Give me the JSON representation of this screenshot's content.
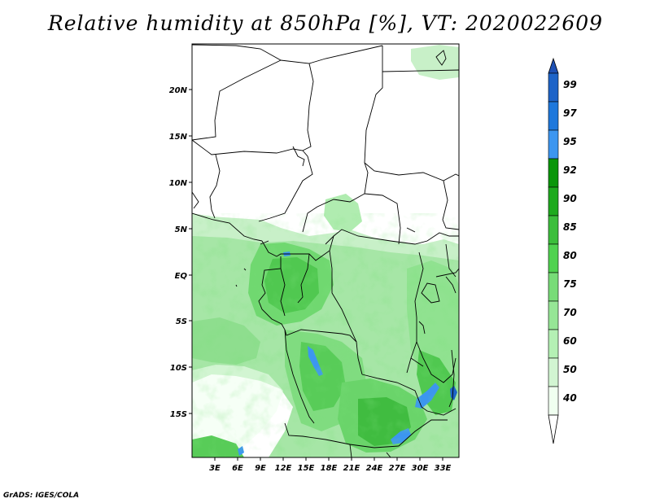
{
  "title": "Relative humidity at 850hPa [%], VT: 2020022609",
  "map": {
    "lat_labels": [
      "20N",
      "15N",
      "10N",
      "5N",
      "EQ",
      "5S",
      "10S",
      "15S"
    ],
    "lon_labels": [
      "3E",
      "6E",
      "9E",
      "12E",
      "15E",
      "18E",
      "21E",
      "24E",
      "27E",
      "30E",
      "33E"
    ]
  },
  "colorbar": {
    "levels": [
      "99",
      "97",
      "95",
      "92",
      "90",
      "85",
      "80",
      "75",
      "70",
      "60",
      "50",
      "40"
    ],
    "colors": [
      "#1e64c8",
      "#1e78dc",
      "#3c96f0",
      "#0a960a",
      "#1eaa1e",
      "#3cbe3c",
      "#50d250",
      "#78dc78",
      "#96e696",
      "#b4f0b4",
      "#d2f5d2",
      "#f0fff0"
    ],
    "top_arrow_color": "#1e50b4",
    "bottom_arrow_color": "#ffffff"
  },
  "credit": "GrADS: IGES/COLA"
}
